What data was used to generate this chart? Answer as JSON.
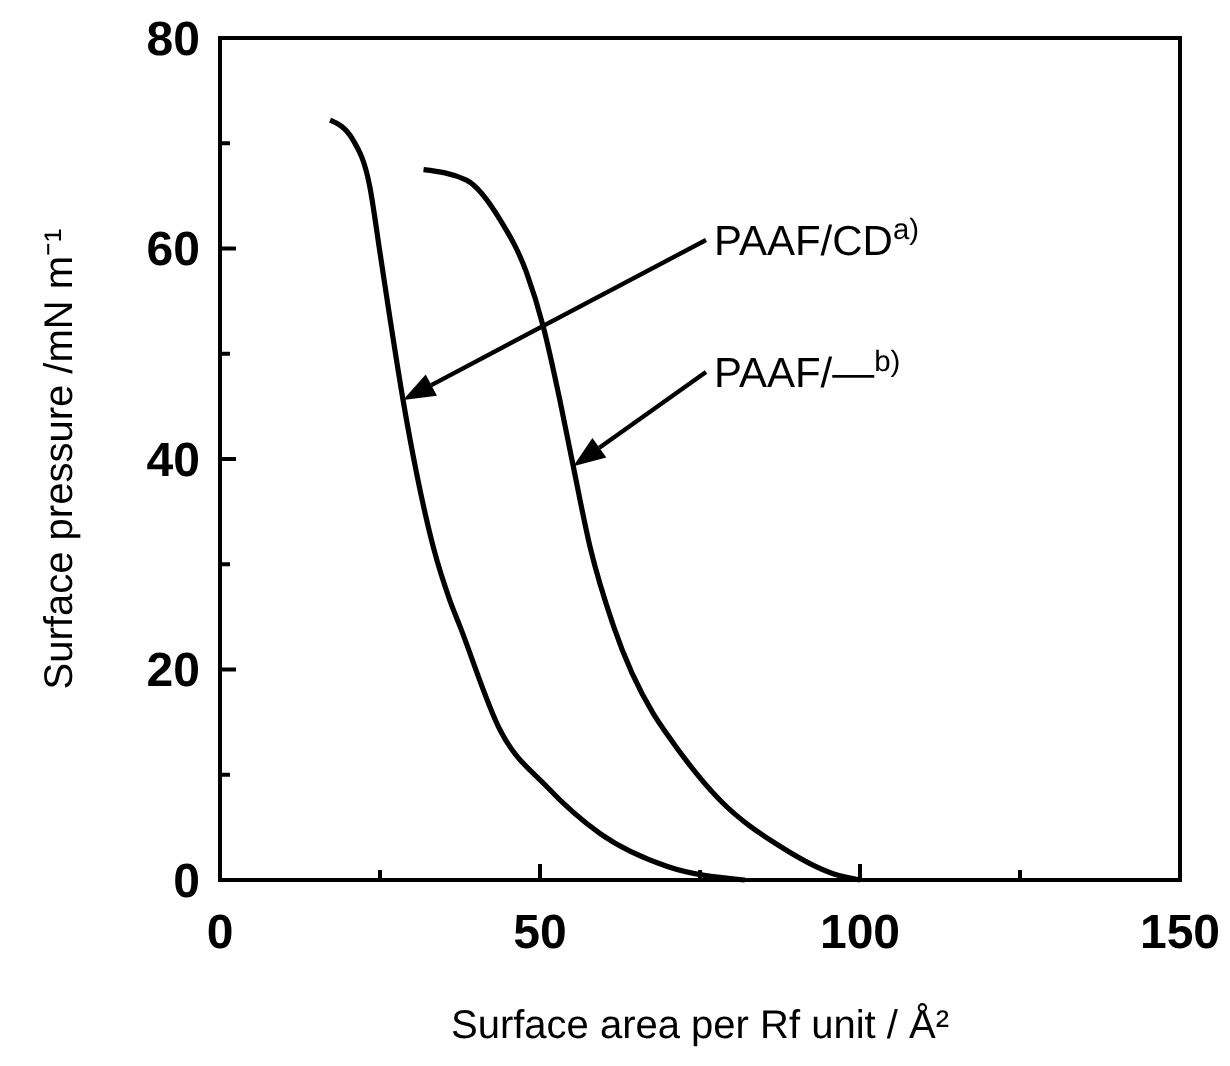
{
  "chart_data": {
    "type": "line",
    "xlabel": "Surface area per Rf unit / Å²",
    "ylabel": "Surface pressure  /mN m⁻¹",
    "xlim": [
      0,
      150
    ],
    "ylim": [
      0,
      80
    ],
    "xticks": [
      0,
      {
        "value": 25,
        "label": null
      },
      50,
      {
        "value": 75,
        "label": null
      },
      100,
      {
        "value": 125,
        "label": null
      },
      150
    ],
    "yticks": [
      0,
      {
        "value": 10,
        "label": null
      },
      20,
      {
        "value": 30,
        "label": null
      },
      40,
      {
        "value": 50,
        "label": null
      },
      60,
      {
        "value": 70,
        "label": null
      },
      80
    ],
    "grid": false,
    "marker": "none",
    "line_style": "solid",
    "series": [
      {
        "color": "#000000",
        "x": [
          17.2,
          20.8,
          23.4,
          25,
          26.6,
          28.6,
          30.7,
          33.3,
          35.9,
          37.5,
          43.8,
          51,
          59.4,
          69.8,
          82
        ],
        "values": [
          72.2,
          70.3,
          65.9,
          59.6,
          53.2,
          45.6,
          38.7,
          31.7,
          26.6,
          24.1,
          14.2,
          8.9,
          4.4,
          1.3,
          0
        ]
      },
      {
        "color": "#000000",
        "x": [
          31.8,
          38.5,
          43.8,
          47.9,
          50.5,
          53.1,
          55.2,
          57.8,
          61.5,
          67.7,
          69.8,
          78.1,
          87.5,
          95.8,
          100
        ],
        "values": [
          67.5,
          66.5,
          62.7,
          57.7,
          52.6,
          45.6,
          39.3,
          31.7,
          24.1,
          15.8,
          13.9,
          7.6,
          3.2,
          0.6,
          0
        ]
      }
    ],
    "annotations": [
      "PAAF/CD$^{a)}$",
      "PAAF/—$^{b)}$"
    ]
  }
}
